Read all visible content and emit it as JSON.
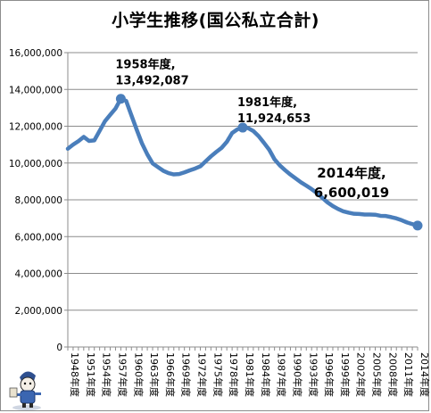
{
  "chart_data": {
    "type": "line",
    "title": "小学生推移(国公私立合計)",
    "ylim": [
      0,
      16000000
    ],
    "y_ticks": [
      "0",
      "2,000,000",
      "4,000,000",
      "6,000,000",
      "8,000,000",
      "10,000,000",
      "12,000,000",
      "14,000,000",
      "16,000,000"
    ],
    "y_tick_values": [
      0,
      2000000,
      4000000,
      6000000,
      8000000,
      10000000,
      12000000,
      14000000,
      16000000
    ],
    "x_tick_labels": [
      "1948年度",
      "1951年度",
      "1954年度",
      "1957年度",
      "1960年度",
      "1963年度",
      "1966年度",
      "1969年度",
      "1972年度",
      "1975年度",
      "1978年度",
      "1981年度",
      "1984年度",
      "1987年度",
      "1990年度",
      "1993年度",
      "1996年度",
      "1999年度",
      "2002年度",
      "2005年度",
      "2008年度",
      "2011年度",
      "2014年度"
    ],
    "grid": true,
    "legend": "none",
    "series": [
      {
        "color": "#4a7ebb",
        "x": [
          1948,
          1949,
          1950,
          1951,
          1952,
          1953,
          1954,
          1955,
          1956,
          1957,
          1958,
          1959,
          1960,
          1961,
          1962,
          1963,
          1964,
          1965,
          1966,
          1967,
          1968,
          1969,
          1970,
          1971,
          1972,
          1973,
          1974,
          1975,
          1976,
          1977,
          1978,
          1979,
          1980,
          1981,
          1982,
          1983,
          1984,
          1985,
          1986,
          1987,
          1988,
          1989,
          1990,
          1991,
          1992,
          1993,
          1994,
          1995,
          1996,
          1997,
          1998,
          1999,
          2000,
          2001,
          2002,
          2003,
          2004,
          2005,
          2006,
          2007,
          2008,
          2009,
          2010,
          2011,
          2012,
          2013,
          2014
        ],
        "values": [
          10775000,
          11000000,
          11190000,
          11420000,
          11200000,
          11230000,
          11750000,
          12270000,
          12620000,
          12960000,
          13492087,
          13380000,
          12590000,
          11810000,
          11060000,
          10470000,
          9980000,
          9780000,
          9580000,
          9450000,
          9380000,
          9400000,
          9490000,
          9600000,
          9700000,
          9820000,
          10090000,
          10360000,
          10600000,
          10820000,
          11150000,
          11630000,
          11830000,
          11924653,
          11900000,
          11740000,
          11460000,
          11100000,
          10720000,
          10200000,
          9870000,
          9610000,
          9370000,
          9160000,
          8950000,
          8770000,
          8580000,
          8370000,
          8110000,
          7860000,
          7660000,
          7500000,
          7370000,
          7300000,
          7240000,
          7230000,
          7200000,
          7200000,
          7190000,
          7130000,
          7120000,
          7060000,
          6990000,
          6890000,
          6770000,
          6680000,
          6600019
        ],
        "markers": [
          1958,
          1981,
          2014
        ]
      }
    ],
    "annotations": [
      {
        "x": 1958,
        "value": 13492087,
        "line1": "1958年度,",
        "line2": "13,492,087"
      },
      {
        "x": 1981,
        "value": 11924653,
        "line1": "1981年度,",
        "line2": "11,924,653"
      },
      {
        "x": 2014,
        "value": 6600019,
        "line1": "2014年度,",
        "line2": "6,600,019"
      }
    ]
  }
}
